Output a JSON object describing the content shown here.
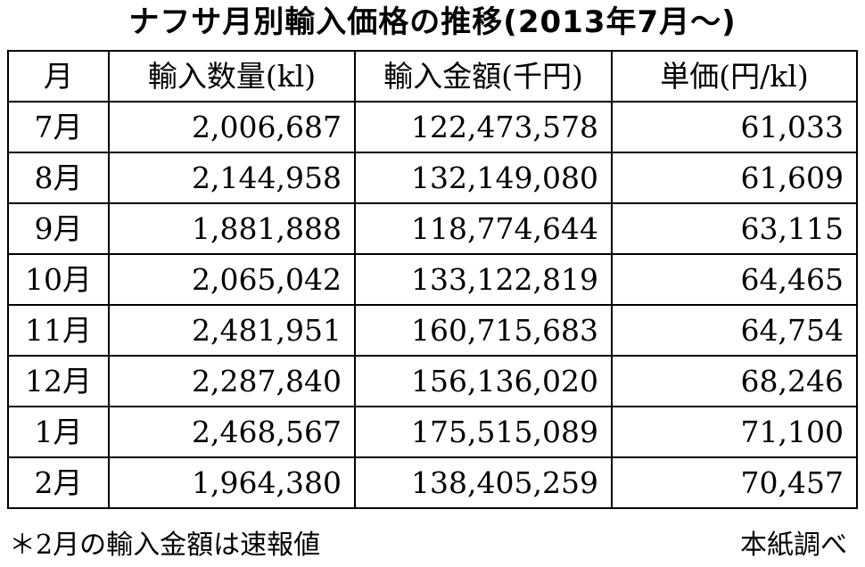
{
  "title": "ナフサ月別輸入価格の推移(2013年7月〜)",
  "table": {
    "headers": [
      "月",
      "輸入数量(kl)",
      "輸入金額(千円)",
      "単価(円/kl)"
    ],
    "rows": [
      [
        "7月",
        "2,006,687",
        "122,473,578",
        "61,033"
      ],
      [
        "8月",
        "2,144,958",
        "132,149,080",
        "61,609"
      ],
      [
        "9月",
        "1,881,888",
        "118,774,644",
        "63,115"
      ],
      [
        "10月",
        "2,065,042",
        "133,122,819",
        "64,465"
      ],
      [
        "11月",
        "2,481,951",
        "160,715,683",
        "64,754"
      ],
      [
        "12月",
        "2,287,840",
        "156,136,020",
        "68,246"
      ],
      [
        "1月",
        "2,468,567",
        "175,515,089",
        "71,100"
      ],
      [
        "2月",
        "1,964,380",
        "138,405,259",
        "70,457"
      ]
    ]
  },
  "footnote": "＊2月の輸入金額は速報値",
  "source": "本紙調べ"
}
